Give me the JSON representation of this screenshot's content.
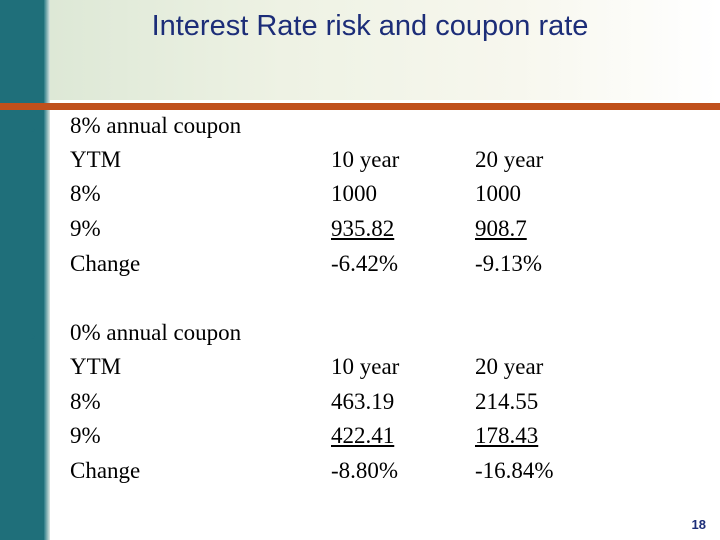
{
  "slide": {
    "title": "Interest Rate risk and coupon rate",
    "page_number": "18",
    "bullet_symbol": "•",
    "accent_color": "#c0501c",
    "sidebar_color": "#1f6f7a"
  },
  "sections": [
    {
      "heading": "8% annual coupon",
      "row_labels": [
        "YTM",
        "8%",
        "9%",
        "Change"
      ],
      "col10": [
        "10 year",
        "1000",
        "935.82",
        "-6.42%"
      ],
      "col20": [
        "20 year",
        "1000",
        "908.7",
        "-9.13%"
      ]
    },
    {
      "heading": "0% annual coupon",
      "row_labels": [
        "YTM",
        "8%",
        "9%",
        "Change"
      ],
      "col10": [
        "10 year",
        "463.19",
        "422.41",
        "-8.80%"
      ],
      "col20": [
        "20 year",
        "214.55",
        "178.43",
        "-16.84%"
      ]
    }
  ]
}
